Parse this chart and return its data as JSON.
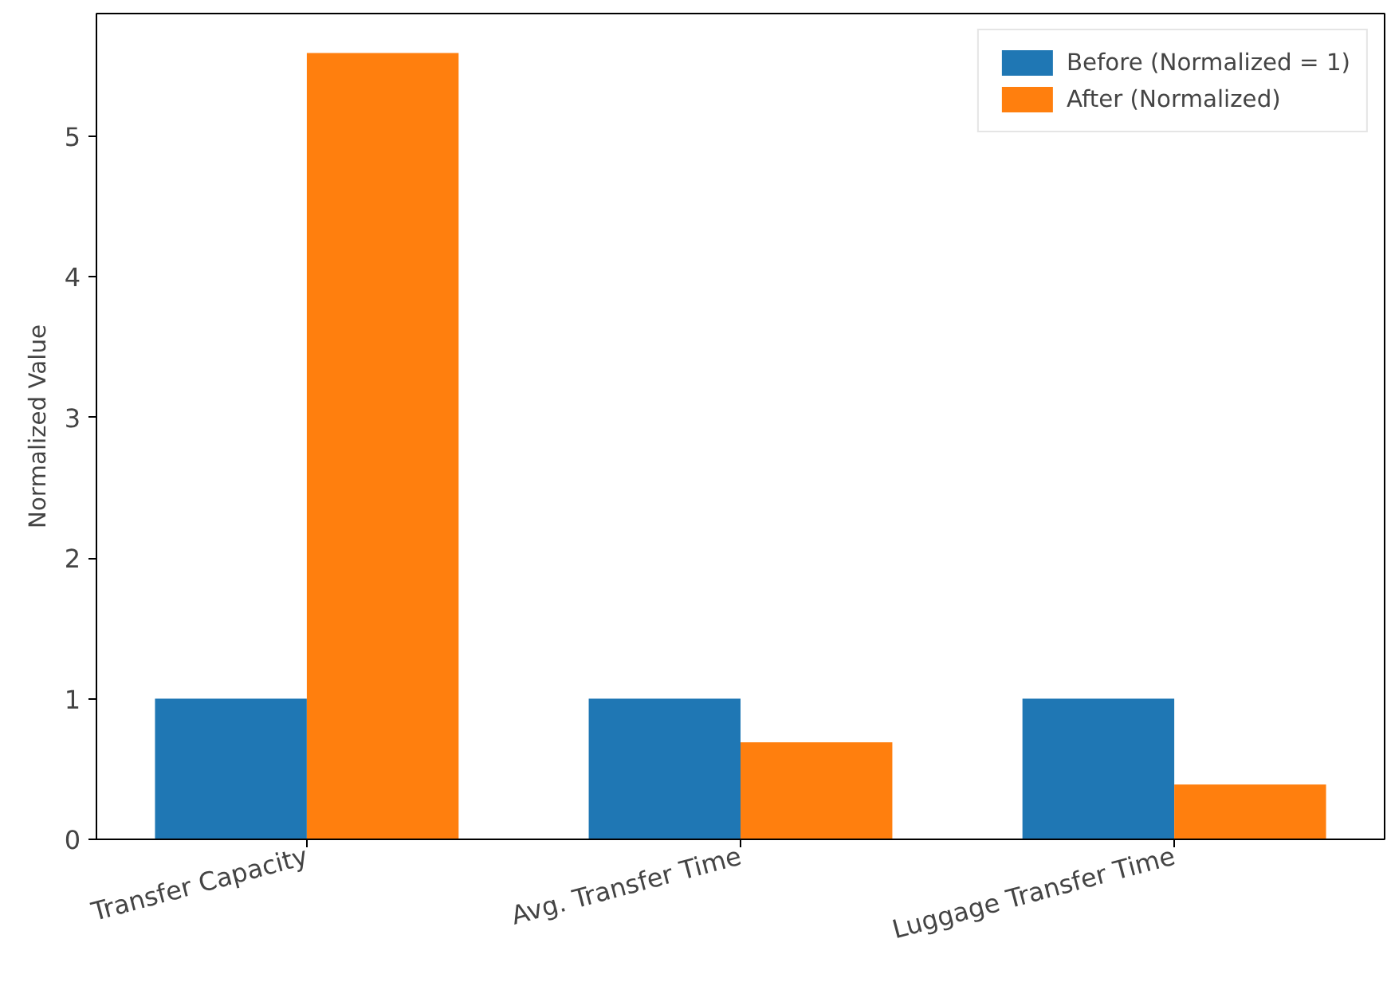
{
  "chart_data": {
    "type": "bar",
    "ylabel": "Normalized Value",
    "categories": [
      "Transfer Capacity",
      "Avg. Transfer Time",
      "Luggage Transfer Time"
    ],
    "series": [
      {
        "name": "Before (Normalized = 1)",
        "color": "#1f77b4",
        "values": [
          1,
          1,
          1
        ]
      },
      {
        "name": "After (Normalized)",
        "color": "#ff7f0e",
        "values": [
          5.59,
          0.69,
          0.39
        ]
      }
    ],
    "ylim": [
      0,
      5.87
    ],
    "yticks": [
      0,
      1,
      2,
      3,
      4,
      5
    ],
    "grid": false,
    "legend": "top right"
  }
}
